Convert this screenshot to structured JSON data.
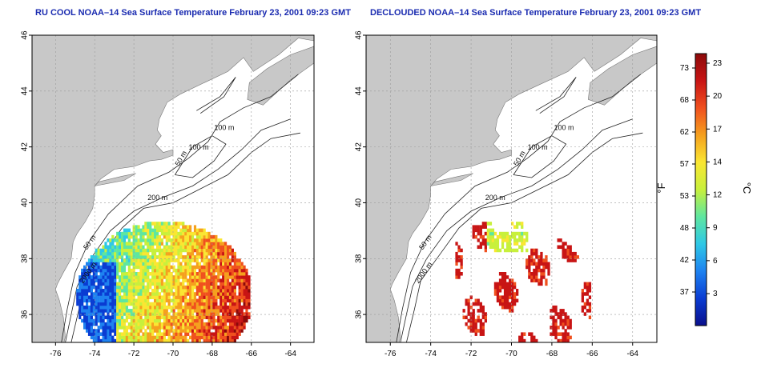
{
  "panels": [
    {
      "id": "left",
      "title": "RU COOL NOAA–14 Sea Surface Temperature February 23, 2001 09:23 GMT",
      "coverage": "full"
    },
    {
      "id": "right",
      "title": "DECLOUDED NOAA–14 Sea Surface Temperature February 23, 2001 09:23 GMT",
      "coverage": "declouded"
    }
  ],
  "axes": {
    "x_ticks": [
      "-76",
      "-74",
      "-72",
      "-70",
      "-68",
      "-66",
      "-64"
    ],
    "y_ticks": [
      "36",
      "38",
      "40",
      "42",
      "44",
      "46"
    ],
    "lon_range": [
      -77.2,
      -62.8
    ],
    "lat_range": [
      35.0,
      46.0
    ]
  },
  "contour_labels": [
    "100 m",
    "100 m",
    "50 m",
    "200 m",
    "50 m",
    "2000 m"
  ],
  "colorbar": {
    "unit_left": "°F",
    "unit_right": "°C",
    "fahrenheit_ticks": [
      "73",
      "68",
      "62",
      "57",
      "53",
      "48",
      "42",
      "37"
    ],
    "celsius_ticks": [
      "23",
      "20",
      "17",
      "14",
      "12",
      "9",
      "6",
      "3"
    ],
    "colors": [
      "#0a0f8c",
      "#0a3cd2",
      "#1e82f0",
      "#2ec8e6",
      "#5ee6a0",
      "#c8f03c",
      "#fae632",
      "#f5a01e",
      "#f0501e",
      "#c81414",
      "#8c0a0a"
    ]
  },
  "colors": {
    "land": "#c8c8c8",
    "title": "#1a2bb0",
    "grid": "#9a9a9a",
    "contour": "#222222"
  }
}
